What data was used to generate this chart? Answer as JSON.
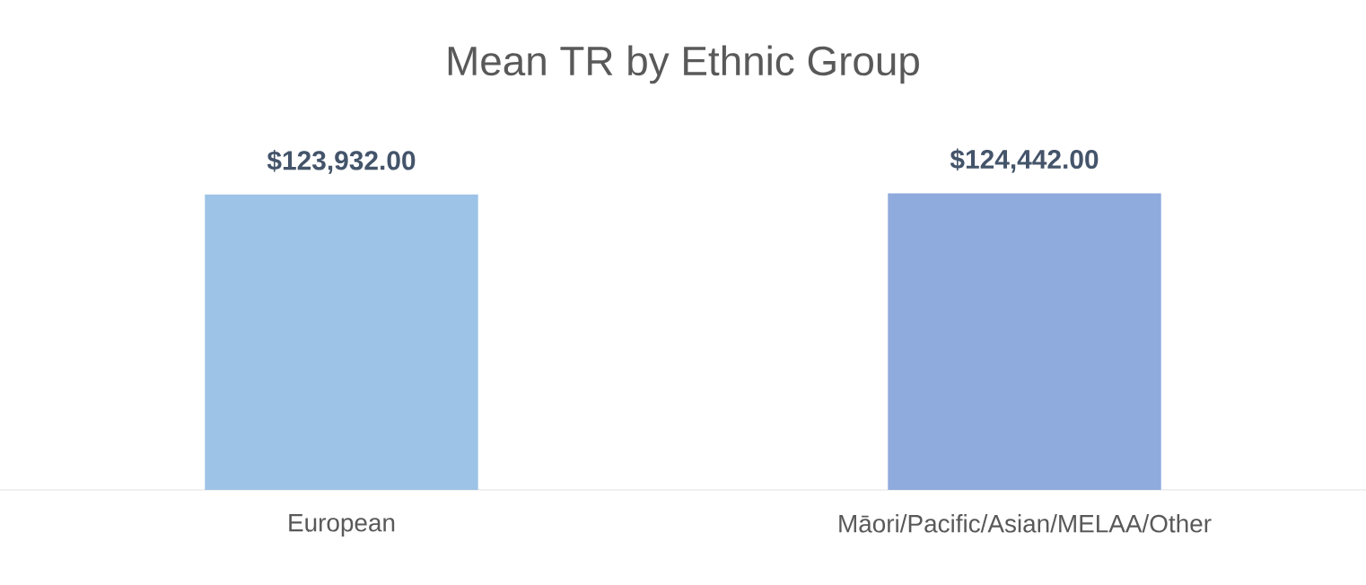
{
  "chart_data": {
    "type": "bar",
    "title": "Mean TR by Ethnic Group",
    "categories": [
      "European",
      "Māori/Pacific/Asian/MELAA/Other"
    ],
    "values": [
      123932,
      124442
    ],
    "value_labels": [
      "$123,932.00",
      "$124,442.00"
    ],
    "colors": [
      "#9dc3e6",
      "#8faadc"
    ],
    "ylim": [
      0,
      125000
    ],
    "tick_labels": "x"
  }
}
